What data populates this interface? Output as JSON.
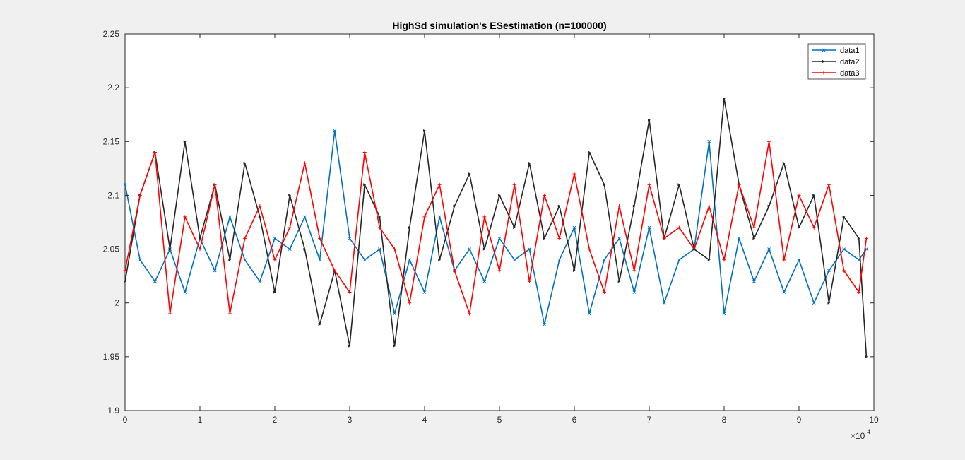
{
  "chart_data": {
    "type": "line",
    "title": "HighSd simulation's ESestimation (n=100000)",
    "xlabel": "",
    "ylabel": "",
    "xlim": [
      0,
      100000
    ],
    "ylim": [
      1.9,
      2.25
    ],
    "x_exponent_label": "×10",
    "x_exponent_power": "4",
    "xticks": [
      0,
      10000,
      20000,
      30000,
      40000,
      50000,
      60000,
      70000,
      80000,
      90000,
      100000
    ],
    "xtick_labels": [
      "0",
      "1",
      "2",
      "3",
      "4",
      "5",
      "6",
      "7",
      "8",
      "9",
      "10"
    ],
    "yticks": [
      1.9,
      1.95,
      2.0,
      2.05,
      2.1,
      2.15,
      2.2,
      2.25
    ],
    "ytick_labels": [
      "1.9",
      "1.95",
      "2",
      "2.05",
      "2.1",
      "2.15",
      "2.2",
      "2.25"
    ],
    "grid": false,
    "legend_position": "top-right",
    "series": [
      {
        "name": "data1",
        "color": "#0072bd",
        "marker": "x",
        "x": [
          0,
          2000,
          4000,
          6000,
          8000,
          10000,
          12000,
          14000,
          16000,
          18000,
          20000,
          22000,
          24000,
          26000,
          28000,
          30000,
          32000,
          34000,
          36000,
          38000,
          40000,
          42000,
          44000,
          46000,
          48000,
          50000,
          52000,
          54000,
          56000,
          58000,
          60000,
          62000,
          64000,
          66000,
          68000,
          70000,
          72000,
          74000,
          76000,
          78000,
          80000,
          82000,
          84000,
          86000,
          88000,
          90000,
          92000,
          94000,
          96000,
          98000,
          99000
        ],
        "y": [
          2.11,
          2.04,
          2.02,
          2.05,
          2.01,
          2.06,
          2.03,
          2.08,
          2.04,
          2.02,
          2.06,
          2.05,
          2.08,
          2.04,
          2.16,
          2.06,
          2.04,
          2.05,
          1.99,
          2.04,
          2.01,
          2.08,
          2.03,
          2.05,
          2.02,
          2.06,
          2.04,
          2.05,
          1.98,
          2.04,
          2.07,
          1.99,
          2.04,
          2.06,
          2.01,
          2.07,
          2.0,
          2.04,
          2.05,
          2.15,
          1.99,
          2.06,
          2.02,
          2.05,
          2.01,
          2.04,
          2.0,
          2.03,
          2.05,
          2.04,
          2.05
        ]
      },
      {
        "name": "data2",
        "color": "#262626",
        "marker": "triangle-right",
        "x": [
          0,
          2000,
          4000,
          6000,
          8000,
          10000,
          12000,
          14000,
          16000,
          18000,
          20000,
          22000,
          24000,
          26000,
          28000,
          30000,
          32000,
          34000,
          36000,
          38000,
          40000,
          42000,
          44000,
          46000,
          48000,
          50000,
          52000,
          54000,
          56000,
          58000,
          60000,
          62000,
          64000,
          66000,
          68000,
          70000,
          72000,
          74000,
          76000,
          78000,
          80000,
          82000,
          84000,
          86000,
          88000,
          90000,
          92000,
          94000,
          96000,
          98000,
          99000
        ],
        "y": [
          2.02,
          2.1,
          2.14,
          2.05,
          2.15,
          2.06,
          2.11,
          2.04,
          2.13,
          2.08,
          2.01,
          2.1,
          2.05,
          1.98,
          2.03,
          1.96,
          2.11,
          2.08,
          1.96,
          2.07,
          2.16,
          2.04,
          2.09,
          2.12,
          2.05,
          2.1,
          2.07,
          2.13,
          2.06,
          2.09,
          2.03,
          2.14,
          2.11,
          2.02,
          2.09,
          2.17,
          2.06,
          2.11,
          2.05,
          2.04,
          2.19,
          2.11,
          2.06,
          2.09,
          2.13,
          2.07,
          2.1,
          2.0,
          2.08,
          2.06,
          1.95
        ]
      },
      {
        "name": "data3",
        "color": "#ff0000",
        "marker": "plus",
        "x": [
          0,
          2000,
          4000,
          6000,
          8000,
          10000,
          12000,
          14000,
          16000,
          18000,
          20000,
          22000,
          24000,
          26000,
          28000,
          30000,
          32000,
          34000,
          36000,
          38000,
          40000,
          42000,
          44000,
          46000,
          48000,
          50000,
          52000,
          54000,
          56000,
          58000,
          60000,
          62000,
          64000,
          66000,
          68000,
          70000,
          72000,
          74000,
          76000,
          78000,
          80000,
          82000,
          84000,
          86000,
          88000,
          90000,
          92000,
          94000,
          96000,
          98000,
          99000
        ],
        "y": [
          2.03,
          2.1,
          2.14,
          1.99,
          2.08,
          2.05,
          2.11,
          1.99,
          2.06,
          2.09,
          2.04,
          2.07,
          2.13,
          2.06,
          2.03,
          2.01,
          2.14,
          2.07,
          2.05,
          2.0,
          2.08,
          2.11,
          2.03,
          1.99,
          2.08,
          2.03,
          2.11,
          2.02,
          2.1,
          2.06,
          2.12,
          2.05,
          2.01,
          2.09,
          2.03,
          2.11,
          2.06,
          2.07,
          2.05,
          2.09,
          2.04,
          2.11,
          2.07,
          2.15,
          2.04,
          2.1,
          2.07,
          2.11,
          2.03,
          2.01,
          2.06
        ]
      }
    ]
  }
}
